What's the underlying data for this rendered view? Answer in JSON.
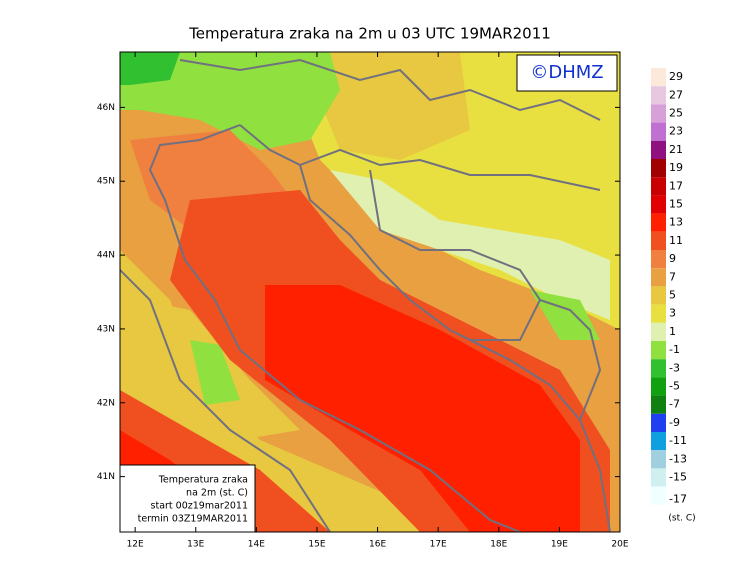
{
  "title": "Temperatura zraka na 2m u 03 UTC 19MAR2011",
  "copyright": "©DHMZ",
  "map": {
    "xlim": [
      11.75,
      20
    ],
    "ylim": [
      40.25,
      46.75
    ],
    "xticks": [
      {
        "value": 12,
        "label": "12E"
      },
      {
        "value": 13,
        "label": "13E"
      },
      {
        "value": 14,
        "label": "14E"
      },
      {
        "value": 15,
        "label": "15E"
      },
      {
        "value": 16,
        "label": "16E"
      },
      {
        "value": 17,
        "label": "17E"
      },
      {
        "value": 18,
        "label": "18E"
      },
      {
        "value": 19,
        "label": "19E"
      },
      {
        "value": 20,
        "label": "20E"
      }
    ],
    "yticks": [
      {
        "value": 41,
        "label": "41N"
      },
      {
        "value": 42,
        "label": "42N"
      },
      {
        "value": 43,
        "label": "43N"
      },
      {
        "value": 44,
        "label": "44N"
      },
      {
        "value": 45,
        "label": "45N"
      },
      {
        "value": 46,
        "label": "46N"
      }
    ]
  },
  "info_box": [
    "Temperatura zraka",
    "na 2m (st. C)",
    "start 00z19mar2011",
    "termin 03Z19MAR2011"
  ],
  "colorbar": {
    "labels": [
      29,
      27,
      25,
      23,
      21,
      19,
      17,
      15,
      13,
      11,
      9,
      7,
      5,
      3,
      1,
      -1,
      -3,
      -5,
      -7,
      -9,
      -11,
      -13,
      -15,
      -17
    ],
    "colors": [
      "#fde9d9",
      "#e8c8e0",
      "#d8a0d8",
      "#c070d0",
      "#901080",
      "#a00000",
      "#c80000",
      "#e00000",
      "#ff2000",
      "#f05020",
      "#f08040",
      "#e8a040",
      "#e8c840",
      "#e8e040",
      "#e0f0b0",
      "#90e040",
      "#30c030",
      "#10a010",
      "#108010",
      "#2040f0",
      "#10a0e0",
      "#a0d0e0",
      "#d0f0f0",
      "#f0ffff"
    ],
    "unit": "(st. C)"
  }
}
